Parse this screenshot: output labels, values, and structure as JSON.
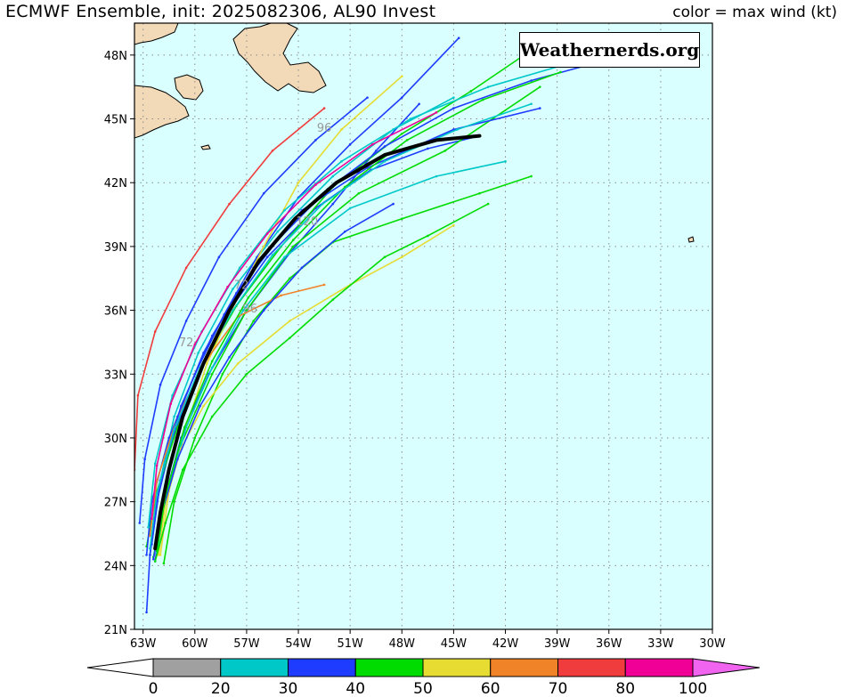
{
  "header": {
    "title": "ECMWF Ensemble, init: 2025082306, AL90 Invest",
    "legend_caption": "color = max wind (kt)"
  },
  "watermark": "Weathernerds.org",
  "map": {
    "background_color": "#d9ffff",
    "land_color": "#f2d9b8",
    "lat_labels": [
      "21N",
      "24N",
      "27N",
      "30N",
      "33N",
      "36N",
      "39N",
      "42N",
      "45N",
      "48N"
    ],
    "lon_labels": [
      "63W",
      "60W",
      "57W",
      "54W",
      "51W",
      "48W",
      "45W",
      "42W",
      "39W",
      "36W",
      "33W",
      "30W"
    ],
    "track_annotations": [
      "96",
      "120",
      "72",
      "72",
      "96"
    ]
  },
  "colorbar": {
    "labels": [
      "0",
      "20",
      "30",
      "40",
      "50",
      "60",
      "70",
      "80",
      "100"
    ],
    "colors": [
      "#a0a0a0",
      "#00c8c8",
      "#1e3cff",
      "#00dc00",
      "#e6dc32",
      "#f08228",
      "#f03c3c",
      "#f00096",
      "#f064f0"
    ]
  },
  "chart_data": {
    "type": "map-tracks",
    "extent": {
      "lon": [
        -63.5,
        -30
      ],
      "lat": [
        21,
        49.5
      ]
    },
    "mean_track": {
      "color": "#000000",
      "points": [
        [
          -62.3,
          24.8
        ],
        [
          -62.0,
          26.5
        ],
        [
          -61.5,
          28.5
        ],
        [
          -60.7,
          31
        ],
        [
          -59.5,
          33.5
        ],
        [
          -58,
          36
        ],
        [
          -56.3,
          38.3
        ],
        [
          -54.2,
          40.3
        ],
        [
          -51.8,
          42
        ],
        [
          -49,
          43.3
        ],
        [
          -46,
          44
        ],
        [
          -43.5,
          44.2
        ]
      ]
    },
    "members": [
      {
        "color": "#1e3cff",
        "points": [
          [
            -62.6,
            24.5
          ],
          [
            -62.2,
            27
          ],
          [
            -61.3,
            30
          ],
          [
            -59.8,
            33
          ],
          [
            -58,
            36
          ],
          [
            -55.8,
            38.5
          ],
          [
            -53,
            40.8
          ],
          [
            -49.8,
            42.6
          ],
          [
            -46.5,
            43.6
          ],
          [
            -43.5,
            44.2
          ]
        ]
      },
      {
        "color": "#1e3cff",
        "points": [
          [
            -62.3,
            24.2
          ],
          [
            -61.8,
            27
          ],
          [
            -60.8,
            30
          ],
          [
            -59.2,
            33
          ],
          [
            -57,
            36
          ],
          [
            -54.5,
            38.7
          ],
          [
            -52,
            41
          ],
          [
            -49.5,
            43.5
          ],
          [
            -47,
            45.7
          ]
        ]
      },
      {
        "color": "#00dc00",
        "points": [
          [
            -62.8,
            24.9
          ],
          [
            -62.2,
            27.5
          ],
          [
            -61,
            30.5
          ],
          [
            -59.5,
            33.5
          ],
          [
            -57.6,
            36.2
          ],
          [
            -55,
            39
          ],
          [
            -52,
            41.8
          ],
          [
            -48,
            44.3
          ],
          [
            -44,
            46.3
          ],
          [
            -40,
            48.5
          ]
        ]
      },
      {
        "color": "#1e3cff",
        "points": [
          [
            -63.2,
            26
          ],
          [
            -62.9,
            29
          ],
          [
            -62,
            32.5
          ],
          [
            -60.5,
            35.5
          ],
          [
            -58.6,
            38.5
          ],
          [
            -56,
            41.5
          ],
          [
            -53,
            44
          ],
          [
            -50,
            46
          ]
        ]
      },
      {
        "color": "#f03c3c",
        "points": [
          [
            -63.5,
            28.5
          ],
          [
            -63.3,
            32
          ],
          [
            -62.3,
            35
          ],
          [
            -60.5,
            38
          ],
          [
            -58,
            41
          ],
          [
            -55.5,
            43.5
          ],
          [
            -52.5,
            45.5
          ]
        ]
      },
      {
        "color": "#00c8c8",
        "points": [
          [
            -62.5,
            25
          ],
          [
            -62,
            28
          ],
          [
            -61.2,
            31
          ],
          [
            -59.8,
            34
          ],
          [
            -57.8,
            37
          ],
          [
            -55.2,
            39.7
          ],
          [
            -52,
            42.3
          ],
          [
            -48.5,
            44.5
          ],
          [
            -45,
            46
          ]
        ]
      },
      {
        "color": "#1e3cff",
        "points": [
          [
            -62.8,
            24.5
          ],
          [
            -62.5,
            27
          ],
          [
            -61.5,
            30
          ],
          [
            -60,
            33
          ],
          [
            -58.3,
            35.8
          ],
          [
            -56.4,
            38.5
          ],
          [
            -54,
            41.3
          ],
          [
            -51,
            43.8
          ],
          [
            -48,
            46
          ],
          [
            -44.7,
            48.8
          ]
        ]
      },
      {
        "color": "#e6dc32",
        "points": [
          [
            -62,
            24.5
          ],
          [
            -61.5,
            27.5
          ],
          [
            -60.5,
            30.5
          ],
          [
            -59.3,
            33.5
          ],
          [
            -57.7,
            36.3
          ],
          [
            -56,
            39
          ],
          [
            -54,
            42
          ],
          [
            -51.5,
            44.5
          ],
          [
            -48,
            47
          ]
        ]
      },
      {
        "color": "#00dc00",
        "points": [
          [
            -62.4,
            24.4
          ],
          [
            -61.9,
            26.5
          ],
          [
            -60.8,
            29.7
          ],
          [
            -59,
            33
          ],
          [
            -57,
            36
          ],
          [
            -54.3,
            39
          ],
          [
            -50.5,
            41.5
          ],
          [
            -45.5,
            43.5
          ],
          [
            -40,
            46.5
          ]
        ]
      },
      {
        "color": "#00c8c8",
        "points": [
          [
            -62.2,
            24.6
          ],
          [
            -61.6,
            27.4
          ],
          [
            -60.5,
            30.5
          ],
          [
            -59,
            33.3
          ],
          [
            -57.2,
            36
          ],
          [
            -54.8,
            38.5
          ],
          [
            -51,
            40.8
          ],
          [
            -46,
            42.3
          ],
          [
            -42,
            43
          ]
        ]
      },
      {
        "color": "#00dc00",
        "points": [
          [
            -61.8,
            24.1
          ],
          [
            -61.2,
            27
          ],
          [
            -60,
            30
          ],
          [
            -58.4,
            33
          ],
          [
            -56.6,
            35.5
          ],
          [
            -54.5,
            37.5
          ],
          [
            -52,
            39.2
          ],
          [
            -48,
            40.3
          ],
          [
            -43.5,
            41.5
          ],
          [
            -40.5,
            42.3
          ]
        ]
      },
      {
        "color": "#1e3cff",
        "points": [
          [
            -62.8,
            21.8
          ],
          [
            -62.6,
            24.5
          ],
          [
            -62,
            28
          ],
          [
            -60.8,
            31.5
          ],
          [
            -59,
            34.8
          ],
          [
            -56.6,
            38
          ],
          [
            -53.8,
            40.7
          ],
          [
            -50,
            42.7
          ],
          [
            -45,
            44.5
          ],
          [
            -40,
            45.5
          ]
        ]
      },
      {
        "color": "#f08228",
        "points": [
          [
            -62.6,
            25.4
          ],
          [
            -62.2,
            28
          ],
          [
            -61,
            31
          ],
          [
            -59.3,
            33.7
          ],
          [
            -57.5,
            35.7
          ],
          [
            -55,
            36.7
          ],
          [
            -52.5,
            37.2
          ]
        ]
      },
      {
        "color": "#e6dc32",
        "points": [
          [
            -62.1,
            24.5
          ],
          [
            -61.7,
            27
          ],
          [
            -60.8,
            29.5
          ],
          [
            -59.5,
            31.5
          ],
          [
            -57.5,
            33.5
          ],
          [
            -54.5,
            35.5
          ],
          [
            -51,
            37.2
          ],
          [
            -48,
            38.5
          ],
          [
            -45,
            40
          ]
        ]
      },
      {
        "color": "#00dc00",
        "points": [
          [
            -62.3,
            24.2
          ],
          [
            -61.7,
            26
          ],
          [
            -60.7,
            28.5
          ],
          [
            -59,
            31
          ],
          [
            -57,
            33
          ],
          [
            -54.5,
            34.7
          ],
          [
            -52,
            36.5
          ],
          [
            -49,
            38.5
          ],
          [
            -46.5,
            39.5
          ],
          [
            -43,
            41
          ]
        ]
      },
      {
        "color": "#1e3cff",
        "points": [
          [
            -62.4,
            24.3
          ],
          [
            -61.9,
            26.5
          ],
          [
            -61,
            29
          ],
          [
            -59.7,
            31.5
          ],
          [
            -58,
            33.8
          ],
          [
            -56,
            36
          ],
          [
            -53.8,
            38
          ],
          [
            -51.3,
            39.7
          ],
          [
            -48.5,
            41
          ]
        ]
      },
      {
        "color": "#00c8c8",
        "points": [
          [
            -62.7,
            25.8
          ],
          [
            -62.3,
            28.8
          ],
          [
            -61.3,
            32
          ],
          [
            -59.6,
            35
          ],
          [
            -57.4,
            38
          ],
          [
            -54.8,
            40.7
          ],
          [
            -51.5,
            43
          ],
          [
            -47.5,
            45
          ],
          [
            -43,
            46.5
          ],
          [
            -37.5,
            47.8
          ],
          [
            -33,
            48.5
          ]
        ]
      },
      {
        "color": "#1e3cff",
        "points": [
          [
            -62.5,
            25
          ],
          [
            -62,
            28
          ],
          [
            -61,
            31
          ],
          [
            -59.5,
            34
          ],
          [
            -57.6,
            36.8
          ],
          [
            -55.2,
            39.3
          ],
          [
            -52.3,
            41.7
          ],
          [
            -49,
            43.7
          ],
          [
            -45,
            45.5
          ],
          [
            -40.5,
            46.8
          ],
          [
            -36,
            47.8
          ],
          [
            -33.5,
            48.3
          ]
        ]
      },
      {
        "color": "#00dc00",
        "points": [
          [
            -62.2,
            24.7
          ],
          [
            -61.7,
            27.3
          ],
          [
            -60.6,
            30.5
          ],
          [
            -59,
            33.6
          ],
          [
            -56.9,
            36.6
          ],
          [
            -54.3,
            39.3
          ],
          [
            -51.3,
            41.8
          ],
          [
            -47.7,
            44
          ],
          [
            -43.3,
            45.9
          ],
          [
            -38.8,
            47.2
          ]
        ]
      },
      {
        "color": "#00c8c8",
        "points": [
          [
            -62.6,
            24.8
          ],
          [
            -62.2,
            27.4
          ],
          [
            -61.2,
            30.4
          ],
          [
            -59.7,
            33.3
          ],
          [
            -57.8,
            36
          ],
          [
            -55.5,
            38.6
          ],
          [
            -52.6,
            41
          ],
          [
            -49,
            43
          ],
          [
            -44.8,
            44.5
          ],
          [
            -40.5,
            45.7
          ]
        ]
      },
      {
        "color": "#f00096",
        "points": [
          [
            -62.5,
            26.2
          ],
          [
            -62.2,
            28.7
          ],
          [
            -61.4,
            31.6
          ],
          [
            -60,
            34.4
          ],
          [
            -58.1,
            37.1
          ],
          [
            -55.8,
            39.6
          ],
          [
            -53,
            41.9
          ],
          [
            -49.7,
            43.8
          ],
          [
            -46,
            45.3
          ]
        ]
      }
    ]
  }
}
